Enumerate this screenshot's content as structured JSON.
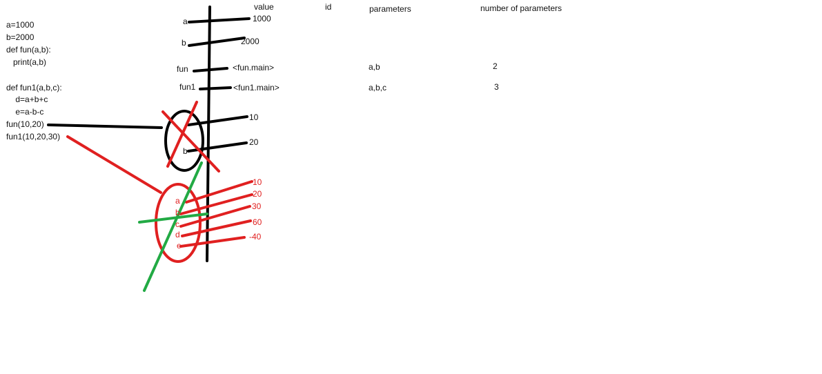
{
  "headers": {
    "value": "value",
    "id": "id",
    "parameters": "parameters",
    "count": "number of parameters"
  },
  "code": [
    "a=1000",
    "b=2000",
    "def fun(a,b):",
    "   print(a,b)",
    "",
    "def fun1(a,b,c):",
    "    d=a+b+c",
    "    e=a-b-c",
    "fun(10,20)",
    "fun1(10,20,30)"
  ],
  "globals": [
    {
      "name": "a",
      "value": "1000"
    },
    {
      "name": "b",
      "value": "2000"
    },
    {
      "name": "fun",
      "value": "<fun.main>",
      "params": "a,b",
      "count": "2"
    },
    {
      "name": "fun1",
      "value": "<fun1.main>",
      "params": "a,b,c",
      "count": "3"
    }
  ],
  "fun_frame": {
    "b_label": "b",
    "values": [
      "10",
      "20"
    ]
  },
  "fun1_frame": {
    "labels": [
      "a",
      "b",
      "c",
      "d",
      "e"
    ],
    "values": [
      "10",
      "20",
      "30",
      "60",
      "-40"
    ]
  },
  "colors": {
    "ink": "#000000",
    "red": "#e02020",
    "green": "#22aa44"
  }
}
